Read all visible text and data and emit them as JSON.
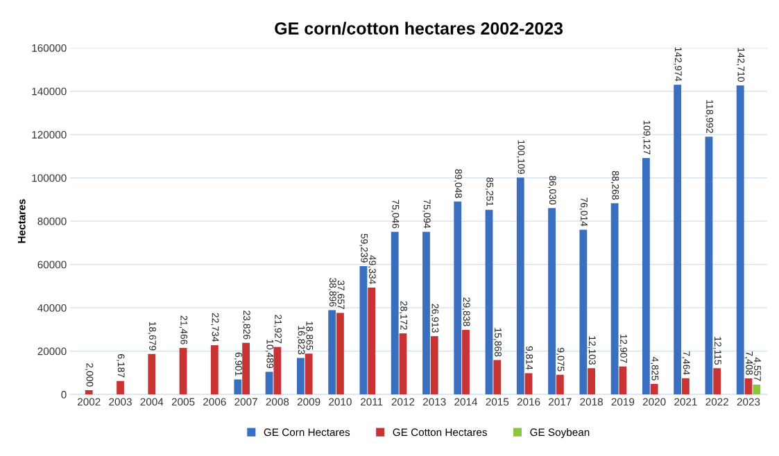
{
  "chart_data": {
    "type": "bar",
    "title": "GE corn/cotton hectares 2002-2023",
    "ylabel": "Hectares",
    "categories": [
      "2002",
      "2003",
      "2004",
      "2005",
      "2006",
      "2007",
      "2008",
      "2009",
      "2010",
      "2011",
      "2012",
      "2013",
      "2014",
      "2015",
      "2016",
      "2017",
      "2018",
      "2019",
      "2020",
      "2021",
      "2022",
      "2023"
    ],
    "series": [
      {
        "name": "GE Corn Hectares",
        "color": "#3a6fbf",
        "values": [
          null,
          null,
          null,
          null,
          null,
          6901,
          10489,
          16823,
          38896,
          59239,
          75046,
          75094,
          89048,
          85251,
          100109,
          86030,
          76014,
          88268,
          109127,
          142974,
          118992,
          142710
        ],
        "value_labels": [
          null,
          null,
          null,
          null,
          null,
          "6,901",
          "10,489",
          "16,823",
          "38,896",
          "59,239",
          "75,046",
          "75,094",
          "89,048",
          "85,251",
          "100,109",
          "86,030",
          "76,014",
          "88,268",
          "109,127",
          "142,974",
          "118,992",
          "142,710"
        ]
      },
      {
        "name": "GE Cotton Hectares",
        "color": "#c83434",
        "values": [
          2000,
          6187,
          18679,
          21466,
          22734,
          23826,
          21927,
          18865,
          37657,
          49334,
          28172,
          26913,
          29838,
          15868,
          9814,
          9075,
          12103,
          12907,
          4825,
          7464,
          12115,
          7408
        ],
        "value_labels": [
          "2,000",
          "6,187",
          "18,679",
          "21,466",
          "22,734",
          "23,826",
          "21,927",
          "18,865",
          "37,657",
          "49,334",
          "28,172",
          "26,913",
          "29,838",
          "15,868",
          "9,814",
          "9,075",
          "12,103",
          "12,907",
          "4,825",
          "7,464",
          "12,115",
          "7,408"
        ]
      },
      {
        "name": "GE Soybean",
        "color": "#8cc63f",
        "values": [
          null,
          null,
          null,
          null,
          null,
          null,
          null,
          null,
          null,
          null,
          null,
          null,
          null,
          null,
          null,
          null,
          null,
          null,
          null,
          null,
          null,
          4557
        ],
        "value_labels": [
          null,
          null,
          null,
          null,
          null,
          null,
          null,
          null,
          null,
          null,
          null,
          null,
          null,
          null,
          null,
          null,
          null,
          null,
          null,
          null,
          null,
          "4,557"
        ]
      }
    ],
    "ylim": [
      0,
      160000
    ],
    "yticks": [
      0,
      20000,
      40000,
      60000,
      80000,
      100000,
      120000,
      140000,
      160000
    ],
    "grid": "y",
    "legend": "bottom"
  }
}
